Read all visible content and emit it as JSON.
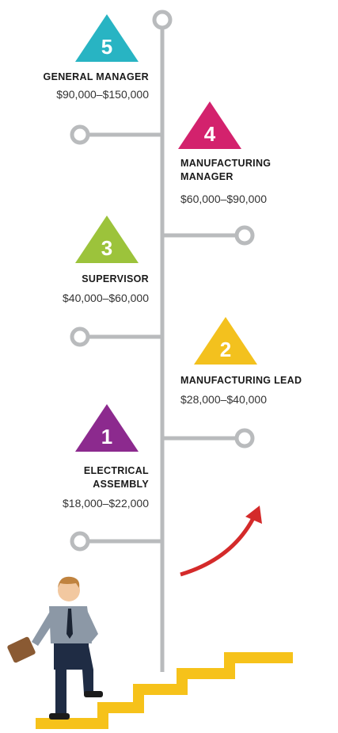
{
  "nodes": [
    {
      "number": 5,
      "title": [
        "GENERAL MANAGER"
      ],
      "salary": "$90,000–$150,000"
    },
    {
      "number": 4,
      "title": [
        "MANUFACTURING",
        "MANAGER"
      ],
      "salary": "$60,000–$90,000"
    },
    {
      "number": 3,
      "title": [
        "SUPERVISOR"
      ],
      "salary": "$40,000–$60,000"
    },
    {
      "number": 2,
      "title": [
        "MANUFACTURING LEAD"
      ],
      "salary": "$28,000–$40,000"
    },
    {
      "number": 1,
      "title": [
        "ELECTRICAL",
        "ASSEMBLY"
      ],
      "salary": "$18,000–$22,000"
    }
  ]
}
